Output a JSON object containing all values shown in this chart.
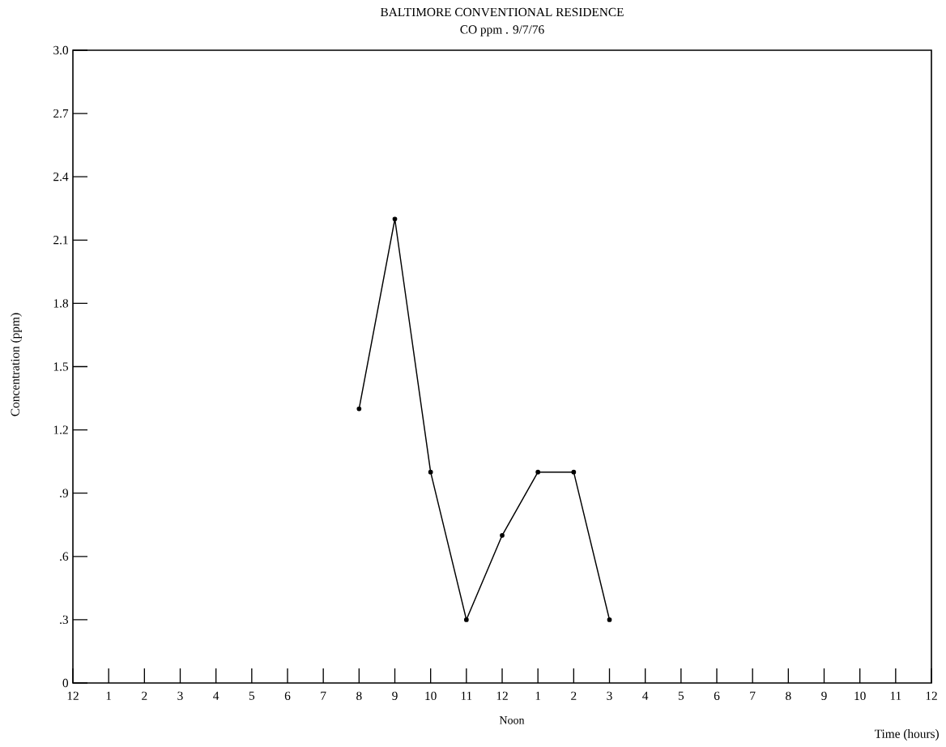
{
  "chart_data": {
    "type": "line",
    "title": "BALTIMORE CONVENTIONAL RESIDENCE",
    "subtitle": "CO ppm . 9/7/76",
    "xlabel": "Time (hours)",
    "ylabel": "Concentration (ppm)",
    "annotations": [
      "Noon"
    ],
    "categories": [
      "12",
      "1",
      "2",
      "3",
      "4",
      "5",
      "6",
      "7",
      "8",
      "9",
      "10",
      "11",
      "12",
      "1",
      "2",
      "3",
      "4",
      "5",
      "6",
      "7",
      "8",
      "9",
      "10",
      "11",
      "12"
    ],
    "series": [
      {
        "color": "#000000",
        "values": [
          null,
          null,
          null,
          null,
          null,
          null,
          null,
          null,
          1.3,
          2.2,
          1.0,
          0.3,
          0.7,
          1.0,
          1.0,
          0.3,
          null,
          null,
          null,
          null,
          null,
          null,
          null,
          null,
          null
        ]
      }
    ],
    "ylim": [
      0,
      3
    ],
    "yticks": [
      0,
      {
        "value": 0.3,
        "label": ".3"
      },
      {
        "value": 0.6,
        "label": ".6"
      },
      {
        "value": 0.9,
        "label": ".9"
      },
      1.2,
      1.5,
      1.8,
      2.1,
      2.4,
      2.7,
      {
        "value": 3,
        "label": "3.0"
      }
    ],
    "grid": false,
    "marker": "circle",
    "line_style": "solid"
  }
}
